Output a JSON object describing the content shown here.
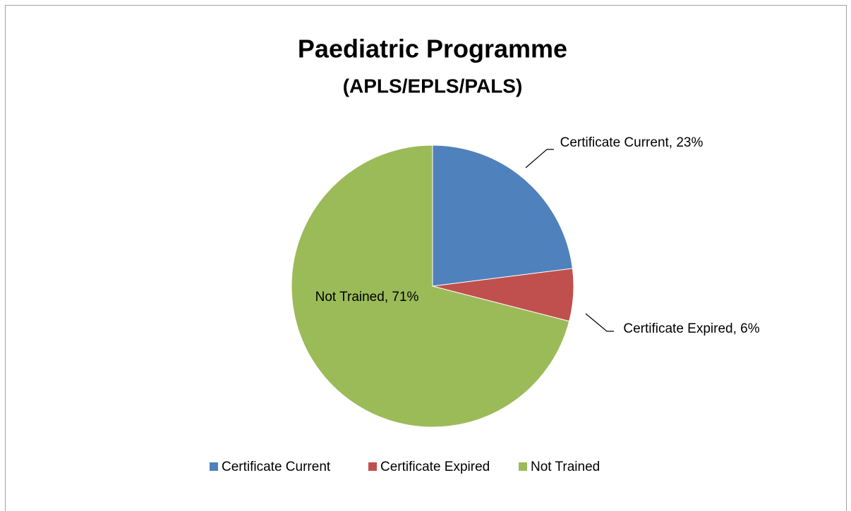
{
  "chart_data": {
    "type": "pie",
    "title": "Paediatric Programme",
    "subtitle": "(APLS/EPLS/PALS)",
    "categories": [
      "Certificate Current",
      "Certificate Expired",
      "Not Trained"
    ],
    "values": [
      23,
      6,
      71
    ],
    "value_labels": [
      "Certificate Current, 23%",
      "Certificate Expired, 6%",
      "Not Trained, 71%"
    ],
    "colors": [
      "#4f81bd",
      "#c0504d",
      "#9bbb59"
    ],
    "legend": "bottom"
  }
}
